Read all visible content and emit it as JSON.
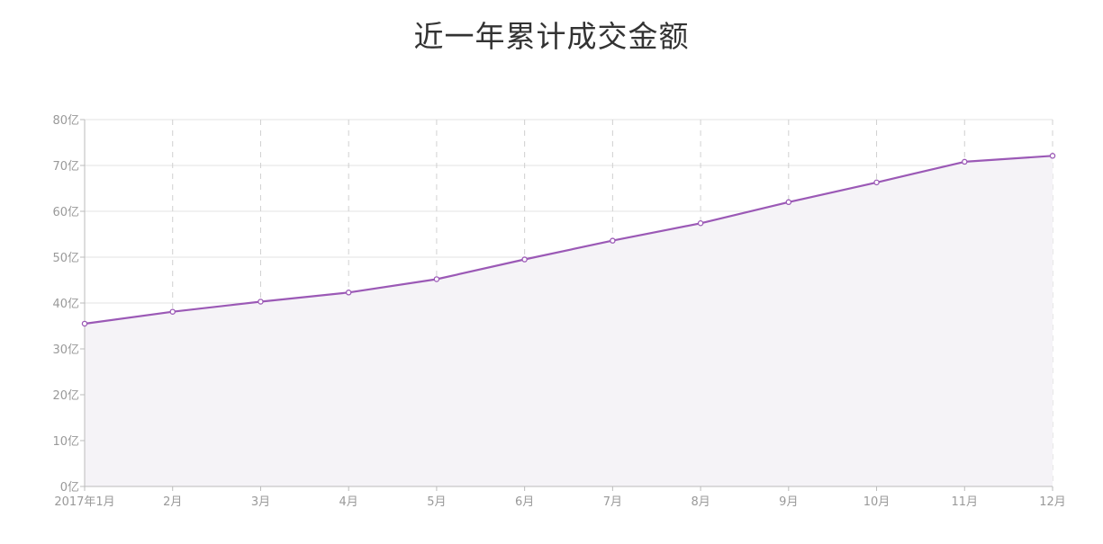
{
  "chart_data": {
    "type": "area",
    "title": "近一年累计成交金额",
    "categories": [
      "2017年1月",
      "2月",
      "3月",
      "4月",
      "5月",
      "6月",
      "7月",
      "8月",
      "9月",
      "10月",
      "11月",
      "12月"
    ],
    "series": [
      {
        "values": [
          35.5,
          38.1,
          40.3,
          42.3,
          45.2,
          49.5,
          53.6,
          57.4,
          62.0,
          66.3,
          70.8,
          72.1
        ]
      }
    ],
    "y_tick_labels": [
      "0亿",
      "10亿",
      "20亿",
      "30亿",
      "40亿",
      "50亿",
      "60亿",
      "70亿",
      "80亿"
    ],
    "ylim": [
      0,
      80
    ],
    "y_tick_step": 10,
    "xlabel": "",
    "ylabel": "",
    "grid": true,
    "colors": {
      "line": "#9b59b6",
      "area": "#f5f3f7",
      "point_fill": "#ffffff",
      "grid": "#e3e3e3",
      "vgrid": "#d0d0d0",
      "axis": "#bbbbbb",
      "tick_text": "#999999",
      "title": "#333333"
    }
  }
}
